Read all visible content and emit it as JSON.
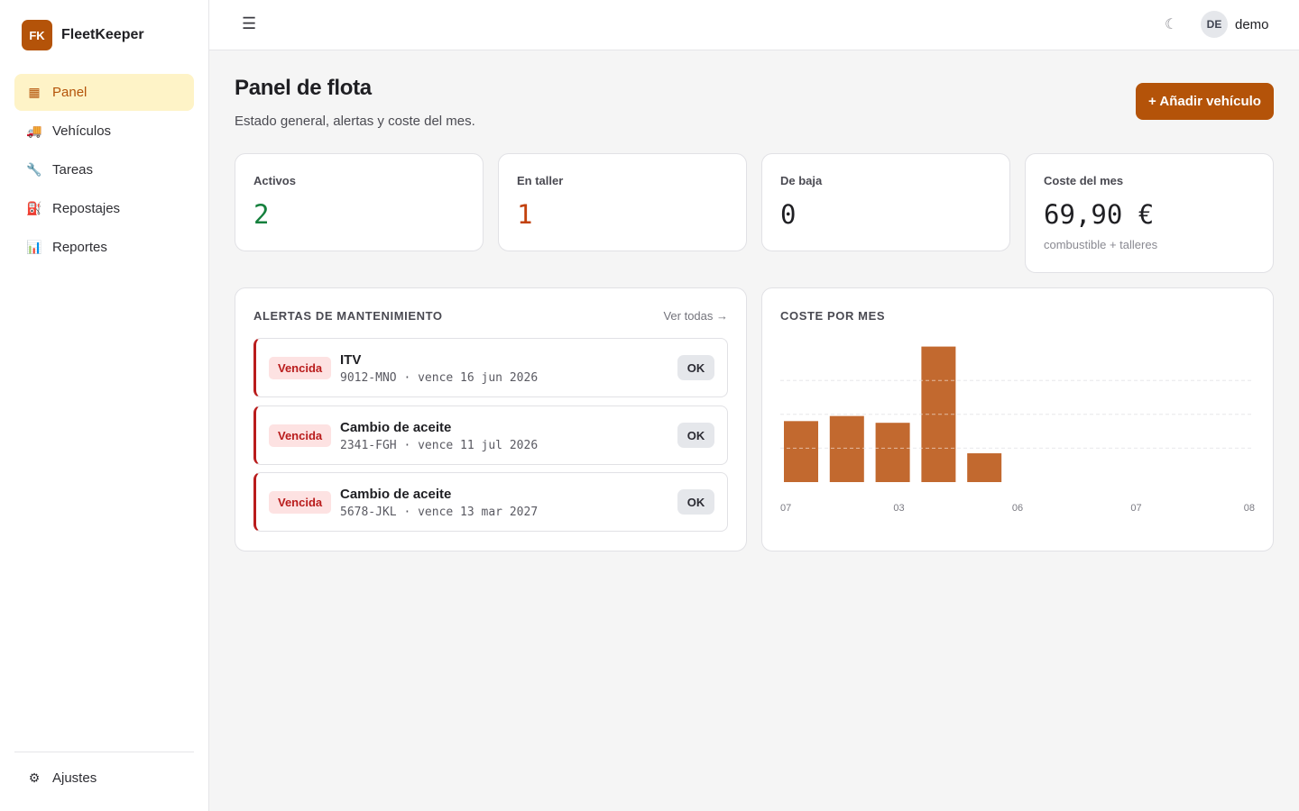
{
  "brand": {
    "logo": "FK",
    "name": "FleetKeeper",
    "color": "#b45309"
  },
  "sidebar": {
    "items": [
      {
        "icon": "grid-icon",
        "glyph": "▦",
        "label": "Panel",
        "active": true
      },
      {
        "icon": "truck-icon",
        "glyph": "🚚",
        "label": "Vehículos"
      },
      {
        "icon": "wrench-icon",
        "glyph": "🔧",
        "label": "Tareas"
      },
      {
        "icon": "fuel-pump-icon",
        "glyph": "⛽",
        "label": "Repostajes"
      },
      {
        "icon": "bar-chart-icon",
        "glyph": "📊",
        "label": "Reportes"
      }
    ],
    "settings": {
      "icon": "gear-icon",
      "glyph": "⚙",
      "label": "Ajustes"
    }
  },
  "topbar": {
    "menu_glyph": "☰",
    "theme_glyph": "☾",
    "user": {
      "initials": "DE",
      "name": "demo"
    }
  },
  "page": {
    "title": "Panel de flota",
    "subtitle": "Estado general, alertas y coste del mes.",
    "add_button": "+ Añadir vehículo"
  },
  "stats": [
    {
      "label": "Activos",
      "value": "2",
      "tone": "green"
    },
    {
      "label": "En taller",
      "value": "1",
      "tone": "orange"
    },
    {
      "label": "De baja",
      "value": "0",
      "tone": "neutral"
    },
    {
      "label": "Coste del mes",
      "value": "69,90 €",
      "note": "combustible + talleres",
      "tone": "neutral"
    }
  ],
  "alerts_card": {
    "title": "ALERTAS DE MANTENIMIENTO",
    "see_all": "Ver todas →",
    "items": [
      {
        "badge": "Vencida",
        "title": "ITV",
        "meta": "9012-MNO · vence 16 jun 2026",
        "action": "OK"
      },
      {
        "badge": "Vencida",
        "title": "Cambio de aceite",
        "meta": "2341-FGH · vence 11 jul 2026",
        "action": "OK"
      },
      {
        "badge": "Vencida",
        "title": "Cambio de aceite",
        "meta": "5678-JKL · vence 13 mar 2027",
        "action": "OK"
      }
    ]
  },
  "chart_card": {
    "title": "COSTE POR MES"
  },
  "colors": {
    "accent": "#b45309",
    "bar": "#c2692f",
    "danger": "#b91c1c",
    "success": "#15803d"
  },
  "chart_data": {
    "type": "bar",
    "title": "COSTE POR MES",
    "values": [
      36,
      39,
      35,
      80,
      17
    ],
    "x_tick_labels": [
      "07",
      "03",
      "06",
      "07",
      "08"
    ],
    "ylim": [
      0,
      100
    ],
    "grid": true,
    "gridlines_y": [
      20,
      40,
      60
    ],
    "legend": "none"
  }
}
